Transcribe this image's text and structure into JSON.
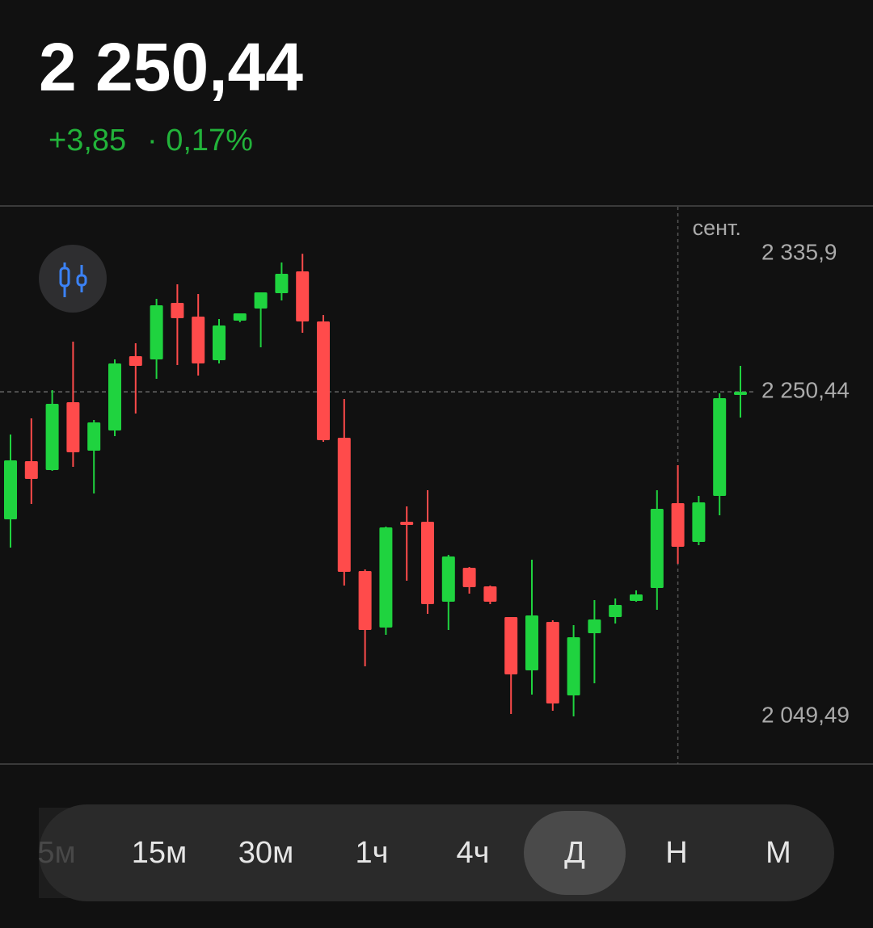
{
  "header": {
    "price": "2 250,44",
    "change": "+3,85",
    "change_percent": "· 0,17%"
  },
  "chart_data": {
    "type": "candlestick",
    "categories": [
      null,
      null,
      null,
      null,
      null,
      null,
      null,
      null,
      null,
      null,
      null,
      null,
      null,
      null,
      null,
      null,
      null,
      null,
      null,
      null,
      null,
      null,
      null,
      null,
      null,
      null,
      null,
      null,
      null,
      null,
      null,
      null,
      "сент.",
      null,
      null,
      null
    ],
    "open": [
      2171.5,
      2207.5,
      2202,
      2244,
      2214,
      2226.5,
      2272.5,
      2270.5,
      2305.5,
      2297,
      2270,
      2294.5,
      2302,
      2311.5,
      2325,
      2294,
      2222,
      2139.5,
      2104.5,
      2170,
      2170,
      2120.5,
      2141.5,
      2130,
      2111,
      2078,
      2108,
      2062.5,
      2101,
      2111,
      2121,
      2129,
      2181.5,
      2157.5,
      2186,
      2248.5
    ],
    "high": [
      2224,
      2234,
      2251.5,
      2281.5,
      2233,
      2270.5,
      2280.5,
      2308,
      2317,
      2311,
      2295.5,
      2299,
      2312,
      2330.5,
      2335.9,
      2298,
      2246,
      2140.5,
      2167,
      2179.5,
      2189.5,
      2149.5,
      2142,
      2130.5,
      2111,
      2146.5,
      2109,
      2106,
      2121.5,
      2122.5,
      2127.5,
      2189.5,
      2205,
      2186,
      2249.5,
      2266.5
    ],
    "low": [
      2154,
      2181,
      2201.5,
      2204,
      2187.5,
      2223,
      2237,
      2258.5,
      2267,
      2260.5,
      2268,
      2293.5,
      2278,
      2307,
      2287,
      2219.5,
      2130.5,
      2080.5,
      2100,
      2133.5,
      2113,
      2103,
      2125.5,
      2119,
      2051,
      2063,
      2053,
      2049.49,
      2070,
      2107,
      2120.5,
      2115.5,
      2144,
      2155.5,
      2174,
      2234.5
    ],
    "close": [
      2208,
      2196.5,
      2243,
      2213,
      2231.5,
      2268,
      2266.5,
      2304,
      2296,
      2268,
      2291.5,
      2299,
      2312,
      2323.5,
      2294,
      2220.5,
      2139,
      2103,
      2166.5,
      2168,
      2119,
      2148.5,
      2129.5,
      2120.5,
      2075.5,
      2112,
      2057.5,
      2098.5,
      2109.5,
      2118.5,
      2125,
      2178,
      2154.5,
      2182,
      2246.5,
      2250.44
    ],
    "up_color": "#1fd33f",
    "down_color": "#ff4b4b",
    "ylim": [
      2020,
      2365
    ],
    "yticks": [
      {
        "value": 2335.9,
        "label": "2 335,9"
      },
      {
        "value": 2250.44,
        "label": "2 250,44"
      },
      {
        "value": 2049.49,
        "label": "2 049,49"
      }
    ]
  },
  "timeframes": [
    "5м",
    "15м",
    "30м",
    "1ч",
    "4ч",
    "Д",
    "Н",
    "М"
  ],
  "selected_timeframe": "Д"
}
